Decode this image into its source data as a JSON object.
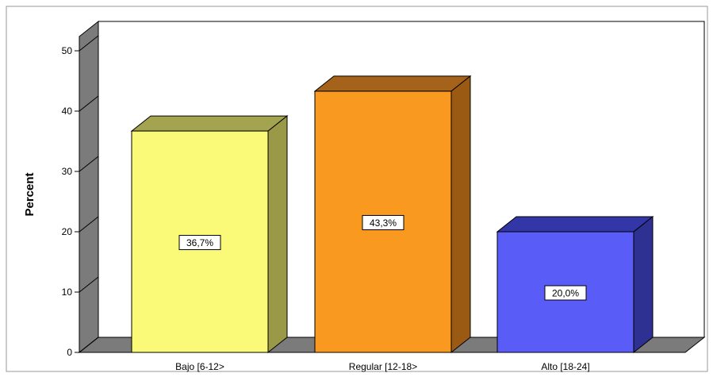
{
  "chart_data": {
    "type": "bar",
    "categories": [
      "Bajo [6-12>",
      "Regular [12-18>",
      "Alto [18-24]"
    ],
    "values": [
      36.7,
      43.3,
      20.0
    ],
    "data_labels": [
      "36,7%",
      "43,3%",
      "20,0%"
    ],
    "ylabel": "Percent",
    "ylim": [
      0,
      50
    ],
    "yticks": [
      0,
      10,
      20,
      30,
      40,
      50
    ],
    "grid": false,
    "legend": "none",
    "style": "3d",
    "colors": [
      {
        "front": "#fafa78",
        "top": "#a4a450",
        "side": "#999947"
      },
      {
        "front": "#f9991f",
        "top": "#a4621a",
        "side": "#9a5a14"
      },
      {
        "front": "#5a5cf8",
        "top": "#3236a6",
        "side": "#2e3192"
      }
    ]
  }
}
